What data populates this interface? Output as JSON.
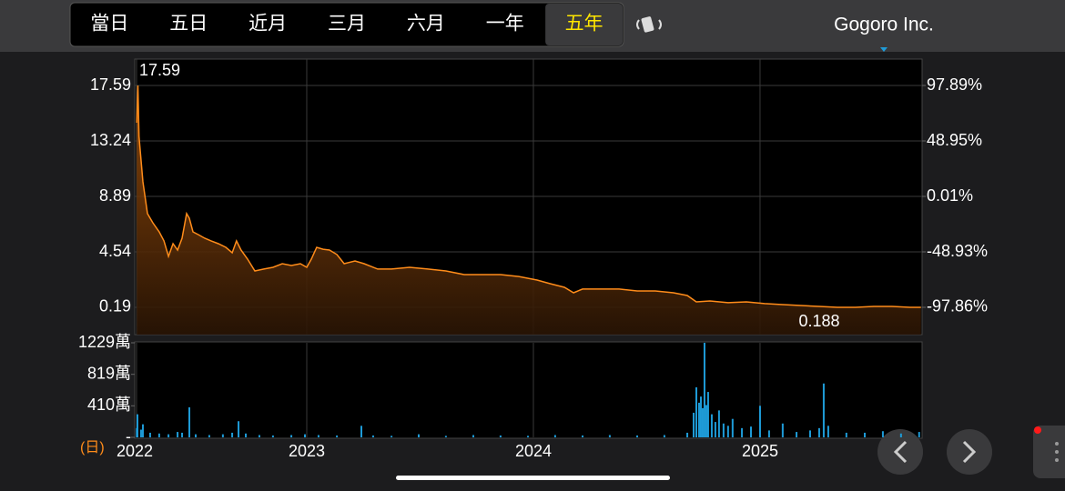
{
  "app": {
    "tabs": [
      "當日",
      "五日",
      "近月",
      "三月",
      "六月",
      "一年",
      "五年"
    ],
    "active_tab": 6,
    "company": "Gogoro Inc."
  },
  "chart_data": [
    {
      "type": "area",
      "annotations": [
        {
          "text": "17.59"
        },
        {
          "text": "0.188"
        }
      ],
      "x": [
        2022.25,
        2022.255,
        2022.26,
        2022.277,
        2022.297,
        2022.321,
        2022.349,
        2022.37,
        2022.39,
        2022.41,
        2022.43,
        2022.45,
        2022.47,
        2022.482,
        2022.498,
        2022.522,
        2022.55,
        2022.578,
        2022.61,
        2022.643,
        2022.671,
        2022.69,
        2022.71,
        2022.739,
        2022.771,
        2022.811,
        2022.851,
        2022.892,
        2022.932,
        2022.972,
        2023.0,
        2023.02,
        2023.044,
        2023.072,
        2023.1,
        2023.133,
        2023.165,
        2023.213,
        2023.253,
        2023.313,
        2023.374,
        2023.454,
        2023.534,
        2023.614,
        2023.695,
        2023.775,
        2023.855,
        2023.936,
        2024.016,
        2024.076,
        2024.137,
        2024.177,
        2024.217,
        2024.297,
        2024.378,
        2024.458,
        2024.538,
        2024.618,
        2024.679,
        2024.719,
        2024.779,
        2024.859,
        2024.94,
        2025.02,
        2025.1,
        2025.181,
        2025.261,
        2025.341,
        2025.421,
        2025.502,
        2025.582,
        2025.662,
        2025.71
      ],
      "series": [
        {
          "color": "#ff8c1a",
          "values": [
            14.67,
            17.59,
            13.6,
            10.03,
            7.54,
            6.82,
            6.11,
            5.4,
            4.18,
            5.18,
            4.68,
            5.61,
            7.54,
            7.18,
            6.11,
            5.89,
            5.61,
            5.4,
            5.18,
            4.9,
            4.47,
            5.4,
            4.68,
            3.97,
            3.04,
            3.19,
            3.33,
            3.61,
            3.47,
            3.61,
            3.33,
            3.97,
            4.9,
            4.75,
            4.68,
            4.33,
            3.61,
            3.83,
            3.61,
            3.19,
            3.19,
            3.33,
            3.19,
            3.04,
            2.76,
            2.76,
            2.76,
            2.61,
            2.33,
            2.04,
            1.76,
            1.33,
            1.62,
            1.62,
            1.62,
            1.47,
            1.47,
            1.33,
            1.12,
            0.62,
            0.69,
            0.55,
            0.62,
            0.48,
            0.4,
            0.33,
            0.26,
            0.19,
            0.19,
            0.26,
            0.26,
            0.19,
            0.188
          ]
        }
      ],
      "xlim": [
        2022.249,
        2025.715
      ],
      "ylim": [
        -1.95,
        19.66
      ],
      "yticks": [
        17.59,
        13.24,
        8.89,
        4.54,
        0.19
      ],
      "y2lim": [
        -121.93,
        121.16
      ],
      "y2ticks": [
        {
          "value": 97.89,
          "label": "97.89%"
        },
        {
          "value": 48.95,
          "label": "48.95%"
        },
        {
          "value": 0.01,
          "label": "0.01%"
        },
        {
          "value": -48.93,
          "label": "-48.93%"
        },
        {
          "value": -97.86,
          "label": "-97.86%"
        }
      ],
      "grid": true
    },
    {
      "type": "bar",
      "unit_label": "(日)",
      "x": [
        2022.25,
        2022.253,
        2022.269,
        2022.277,
        2022.309,
        2022.349,
        2022.39,
        2022.43,
        2022.45,
        2022.482,
        2022.51,
        2022.57,
        2022.63,
        2022.671,
        2022.699,
        2022.731,
        2022.791,
        2022.851,
        2022.932,
        2022.992,
        2023.052,
        2023.133,
        2023.241,
        2023.293,
        2023.374,
        2023.494,
        2023.614,
        2023.735,
        2023.855,
        2023.976,
        2024.096,
        2024.217,
        2024.337,
        2024.458,
        2024.578,
        2024.679,
        2024.707,
        2024.719,
        2024.731,
        2024.739,
        2024.747,
        2024.755,
        2024.763,
        2024.771,
        2024.787,
        2024.803,
        2024.819,
        2024.839,
        2024.859,
        2024.879,
        2024.92,
        2024.96,
        2025.0,
        2025.04,
        2025.1,
        2025.161,
        2025.221,
        2025.261,
        2025.281,
        2025.301,
        2025.381,
        2025.462,
        2025.542,
        2025.622,
        2025.702
      ],
      "series": [
        {
          "color": "#1e9bd7",
          "values": [
            120,
            300,
            100,
            170,
            60,
            50,
            40,
            70,
            60,
            390,
            40,
            30,
            40,
            60,
            210,
            50,
            30,
            25,
            30,
            40,
            30,
            25,
            150,
            25,
            20,
            40,
            20,
            30,
            25,
            20,
            30,
            25,
            30,
            25,
            30,
            60,
            320,
            650,
            450,
            530,
            380,
            1229,
            420,
            590,
            300,
            200,
            350,
            180,
            150,
            240,
            120,
            140,
            410,
            90,
            180,
            70,
            90,
            120,
            700,
            150,
            60,
            60,
            80,
            50,
            70
          ]
        }
      ],
      "xlim": [
        2022.249,
        2025.715
      ],
      "xticks": [
        {
          "value": 2022.249,
          "label": "2022"
        },
        2023,
        2024,
        2025
      ],
      "ylim": [
        0,
        1229
      ],
      "yticks": [
        {
          "value": 1229,
          "label": "1229萬"
        },
        {
          "value": 819,
          "label": "819萬"
        },
        {
          "value": 410,
          "label": "410萬"
        },
        {
          "value": 0,
          "label": "-"
        }
      ],
      "grid": true
    }
  ]
}
